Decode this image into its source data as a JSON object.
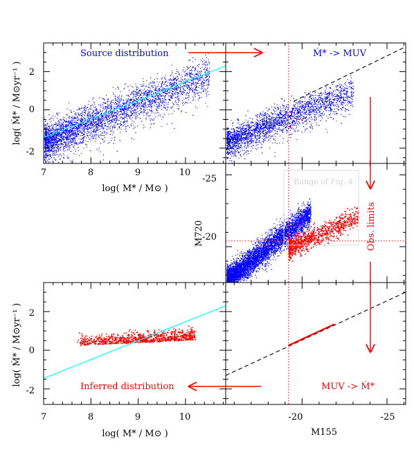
{
  "chart_data": [
    {
      "panel": "top-left",
      "type": "scatter",
      "xlabel": "log( M* / M⊙ )",
      "ylabel": "log( Ṁ* / M⊙yr⁻¹ )",
      "xlim": [
        7,
        10.85
      ],
      "ylim": [
        -2.8,
        3.5
      ],
      "xticks": [
        "7",
        "8",
        "9",
        "10"
      ],
      "yticks": [
        "-2",
        "0",
        "2"
      ],
      "annotation": "Source distribution",
      "series": [
        {
          "kind": "points",
          "color": "#0000ff",
          "trend": {
            "x0": 7.0,
            "y0": -1.65,
            "slope": 1.02,
            "scatter": 0.45
          }
        },
        {
          "kind": "line",
          "color": "#00ffff",
          "x": [
            7.0,
            10.85
          ],
          "y": [
            -1.45,
            2.3
          ]
        }
      ]
    },
    {
      "panel": "top-right",
      "type": "scatter",
      "xlim": [
        -15.5,
        -26.1
      ],
      "ylim": [
        -2.8,
        3.5
      ],
      "annotation": "Ṁ* -> MUV",
      "series": [
        {
          "kind": "points",
          "color": "#0000ff"
        },
        {
          "kind": "dashed-line",
          "color": "#000000",
          "x": [
            -19.5,
            -26.1
          ],
          "y": [
            0.45,
            3.3
          ]
        }
      ],
      "vline": -19.2
    },
    {
      "panel": "middle-right",
      "type": "scatter",
      "ylabel": "M720",
      "xlim": [
        -15.5,
        -26.1
      ],
      "ylim": [
        -17.5,
        -25.8
      ],
      "yticks": [
        "-25",
        "-20"
      ],
      "box_label": "Range of Fig. 4",
      "side_label": "Obs. limits",
      "hline": -20.4,
      "vline": -19.2,
      "series": [
        {
          "kind": "points",
          "color": "#0000ff"
        },
        {
          "kind": "points",
          "color": "#ff0000",
          "x_range": [
            -19.2,
            -23.3
          ],
          "y_range": [
            -19.7,
            -22.4
          ]
        }
      ]
    },
    {
      "panel": "bottom-left",
      "type": "scatter",
      "xlabel": "log( M* / M⊙ )",
      "ylabel": "log( Ṁ* / M⊙yr⁻¹ )",
      "xlim": [
        7,
        10.85
      ],
      "ylim": [
        -2.8,
        3.5
      ],
      "xticks": [
        "7",
        "8",
        "9",
        "10"
      ],
      "yticks": [
        "-2",
        "0",
        "2"
      ],
      "annotation": "Inferred distribution",
      "series": [
        {
          "kind": "points",
          "color": "#ff0000",
          "x_range": [
            7.65,
            10.2
          ],
          "y_range": [
            0.3,
            1.5
          ]
        },
        {
          "kind": "line",
          "color": "#00ffff",
          "x": [
            7.0,
            10.85
          ],
          "y": [
            -1.45,
            2.3
          ]
        }
      ]
    },
    {
      "panel": "bottom-right",
      "type": "line",
      "xlabel": "M155",
      "xlim": [
        -15.5,
        -26.1
      ],
      "ylim": [
        -2.8,
        3.5
      ],
      "xticks": [
        "-20",
        "-25"
      ],
      "annotation": "MUV -> Ṁ*",
      "vline": -19.2,
      "series": [
        {
          "kind": "dashed-line",
          "color": "#000000",
          "x": [
            -15.5,
            -26.1
          ],
          "y": [
            -1.3,
            3.0
          ]
        },
        {
          "kind": "solid-line",
          "color": "#ff0000",
          "x": [
            -19.2,
            -21.9
          ],
          "y": [
            0.25,
            1.35
          ]
        }
      ]
    }
  ],
  "colors": {
    "source": "#0000ff",
    "inferred": "#ff0000",
    "fit": "#00ffff"
  }
}
